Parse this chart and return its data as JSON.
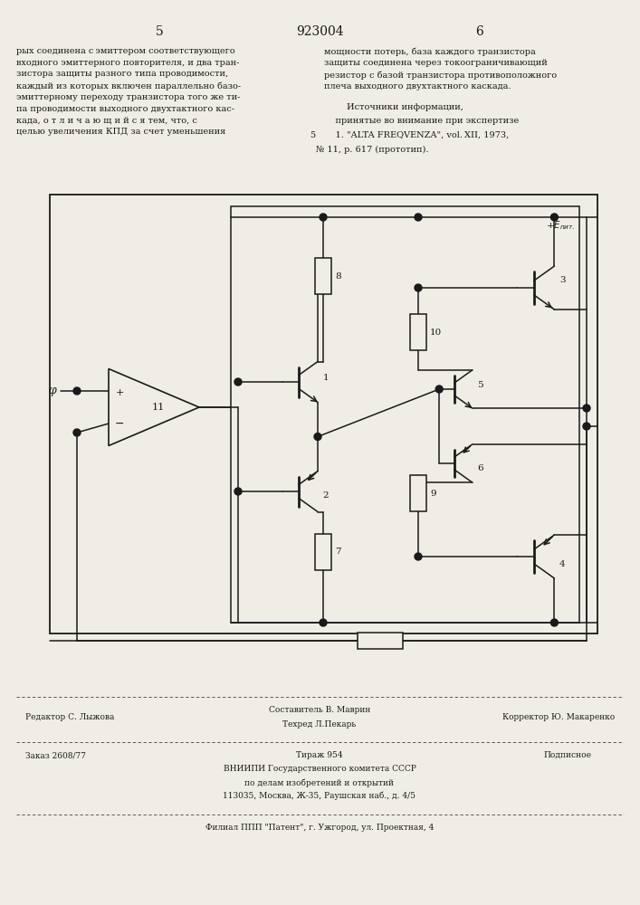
{
  "bg_color": "#f0ede6",
  "page_width": 7.07,
  "page_height": 10.0,
  "header_left_num": "5",
  "header_center_num": "923004",
  "header_right_num": "6",
  "col_left_text": "рых соединена с эмиттером соответствующего\nвходного эмиттерного повторителя, и два тран-\nзистора защиты разного типа проводимости,\nкаждый из которых включен параллельно базо-\nэмиттерному переходу транзистора того же ти-\nпа проводимости выходного двухтактного кас-\nкада, о т л и ч а ю щ и й с я тем, что, с\nцелью увеличения КПД за счет уменьшения",
  "col_right_text": "мощности потерь, база каждого транзистора\nзащиты соединена через токоограничивающий\nрезистор с базой транзистора противоположного\nплеча выходного двухтактного каскада.",
  "col_right_text2": "Источники информации,",
  "col_right_text3": "принятые во внимание при экспертизе",
  "col_right_text4": "1. \"ALTA FREQVENZA\", vol. XII, 1973,",
  "col_right_text5": "№ 11, р. 617 (прототип).",
  "ref_number_5": "5",
  "footer_editor": "Редактор С. Лыжова",
  "footer_composer": "Составитель В. Маврин",
  "footer_techred": "Техред Л.Пекарь",
  "footer_corrector": "Корректор Ю. Макаренко",
  "footer_order": "Заказ 2608/77",
  "footer_tirazh": "Тираж 954",
  "footer_podpisnoe": "Подписное",
  "footer_vnipi": "ВНИИПИ Государственного комитета СССР",
  "footer_po_delam": "по делам изобретений и открытий",
  "footer_address": "113035, Москва, Ж-35, Раушская наб., д. 4/5",
  "footer_filial": "Филиал ППП \"Патент\", г. Ужгород, ул. Проектная, 4"
}
